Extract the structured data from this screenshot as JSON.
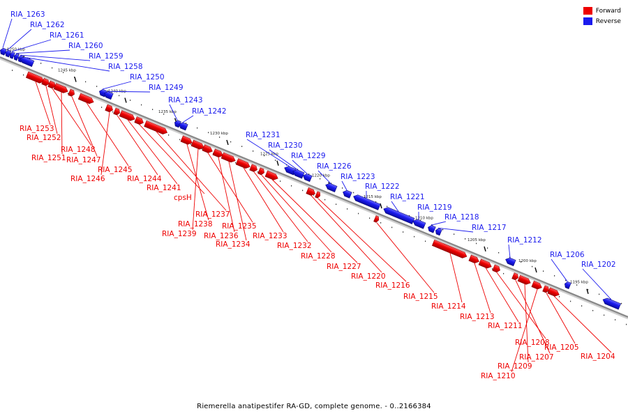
{
  "colors": {
    "forward": "#ee0000",
    "reverse": "#1a1aee",
    "backbone": "#888888"
  },
  "legend": [
    {
      "label": "Forward",
      "strand": "forward"
    },
    {
      "label": "Reverse",
      "strand": "reverse"
    }
  ],
  "caption": "Riemerella anatipestifer RA-GD, complete genome. - 0..2166384",
  "ticks": [
    "1250 kbp",
    "1245 kbp",
    "1240 kbp",
    "1235 kbp",
    "1230 kbp",
    "1225 kbp",
    "1220 kbp",
    "1215 kbp",
    "1210 kbp",
    "1205 kbp",
    "1200 kbp",
    "1195 kbp"
  ],
  "genes": [
    {
      "name": "RIA_1263",
      "strand": "reverse"
    },
    {
      "name": "RIA_1262",
      "strand": "reverse"
    },
    {
      "name": "RIA_1261",
      "strand": "reverse"
    },
    {
      "name": "RIA_1260",
      "strand": "reverse"
    },
    {
      "name": "RIA_1259",
      "strand": "reverse"
    },
    {
      "name": "RIA_1258",
      "strand": "reverse"
    },
    {
      "name": "RIA_1250",
      "strand": "reverse"
    },
    {
      "name": "RIA_1249",
      "strand": "reverse"
    },
    {
      "name": "RIA_1243",
      "strand": "reverse"
    },
    {
      "name": "RIA_1242",
      "strand": "reverse"
    },
    {
      "name": "RIA_1231",
      "strand": "reverse"
    },
    {
      "name": "RIA_1230",
      "strand": "reverse"
    },
    {
      "name": "RIA_1229",
      "strand": "reverse"
    },
    {
      "name": "RIA_1226",
      "strand": "reverse"
    },
    {
      "name": "RIA_1223",
      "strand": "reverse"
    },
    {
      "name": "RIA_1222",
      "strand": "reverse"
    },
    {
      "name": "RIA_1221",
      "strand": "reverse"
    },
    {
      "name": "RIA_1219",
      "strand": "reverse"
    },
    {
      "name": "RIA_1218",
      "strand": "reverse"
    },
    {
      "name": "RIA_1217",
      "strand": "reverse"
    },
    {
      "name": "RIA_1212",
      "strand": "reverse"
    },
    {
      "name": "RIA_1206",
      "strand": "reverse"
    },
    {
      "name": "RIA_1202",
      "strand": "reverse"
    },
    {
      "name": "RIA_1253",
      "strand": "forward"
    },
    {
      "name": "RIA_1252",
      "strand": "forward"
    },
    {
      "name": "RIA_1248",
      "strand": "forward"
    },
    {
      "name": "RIA_1251",
      "strand": "forward"
    },
    {
      "name": "RIA_1247",
      "strand": "forward"
    },
    {
      "name": "RIA_1245",
      "strand": "forward"
    },
    {
      "name": "RIA_1246",
      "strand": "forward"
    },
    {
      "name": "RIA_1244",
      "strand": "forward"
    },
    {
      "name": "RIA_1241",
      "strand": "forward"
    },
    {
      "name": "cpsH",
      "strand": "forward"
    },
    {
      "name": "RIA_1237",
      "strand": "forward"
    },
    {
      "name": "RIA_1238",
      "strand": "forward"
    },
    {
      "name": "RIA_1239",
      "strand": "forward"
    },
    {
      "name": "RIA_1235",
      "strand": "forward"
    },
    {
      "name": "RIA_1236",
      "strand": "forward"
    },
    {
      "name": "RIA_1234",
      "strand": "forward"
    },
    {
      "name": "RIA_1233",
      "strand": "forward"
    },
    {
      "name": "RIA_1232",
      "strand": "forward"
    },
    {
      "name": "RIA_1228",
      "strand": "forward"
    },
    {
      "name": "RIA_1227",
      "strand": "forward"
    },
    {
      "name": "RIA_1220",
      "strand": "forward"
    },
    {
      "name": "RIA_1216",
      "strand": "forward"
    },
    {
      "name": "RIA_1215",
      "strand": "forward"
    },
    {
      "name": "RIA_1214",
      "strand": "forward"
    },
    {
      "name": "RIA_1213",
      "strand": "forward"
    },
    {
      "name": "RIA_1211",
      "strand": "forward"
    },
    {
      "name": "RIA_1208",
      "strand": "forward"
    },
    {
      "name": "RIA_1207",
      "strand": "forward"
    },
    {
      "name": "RIA_1209",
      "strand": "forward"
    },
    {
      "name": "RIA_1210",
      "strand": "forward"
    },
    {
      "name": "RIA_1205",
      "strand": "forward"
    },
    {
      "name": "RIA_1204",
      "strand": "forward"
    }
  ]
}
